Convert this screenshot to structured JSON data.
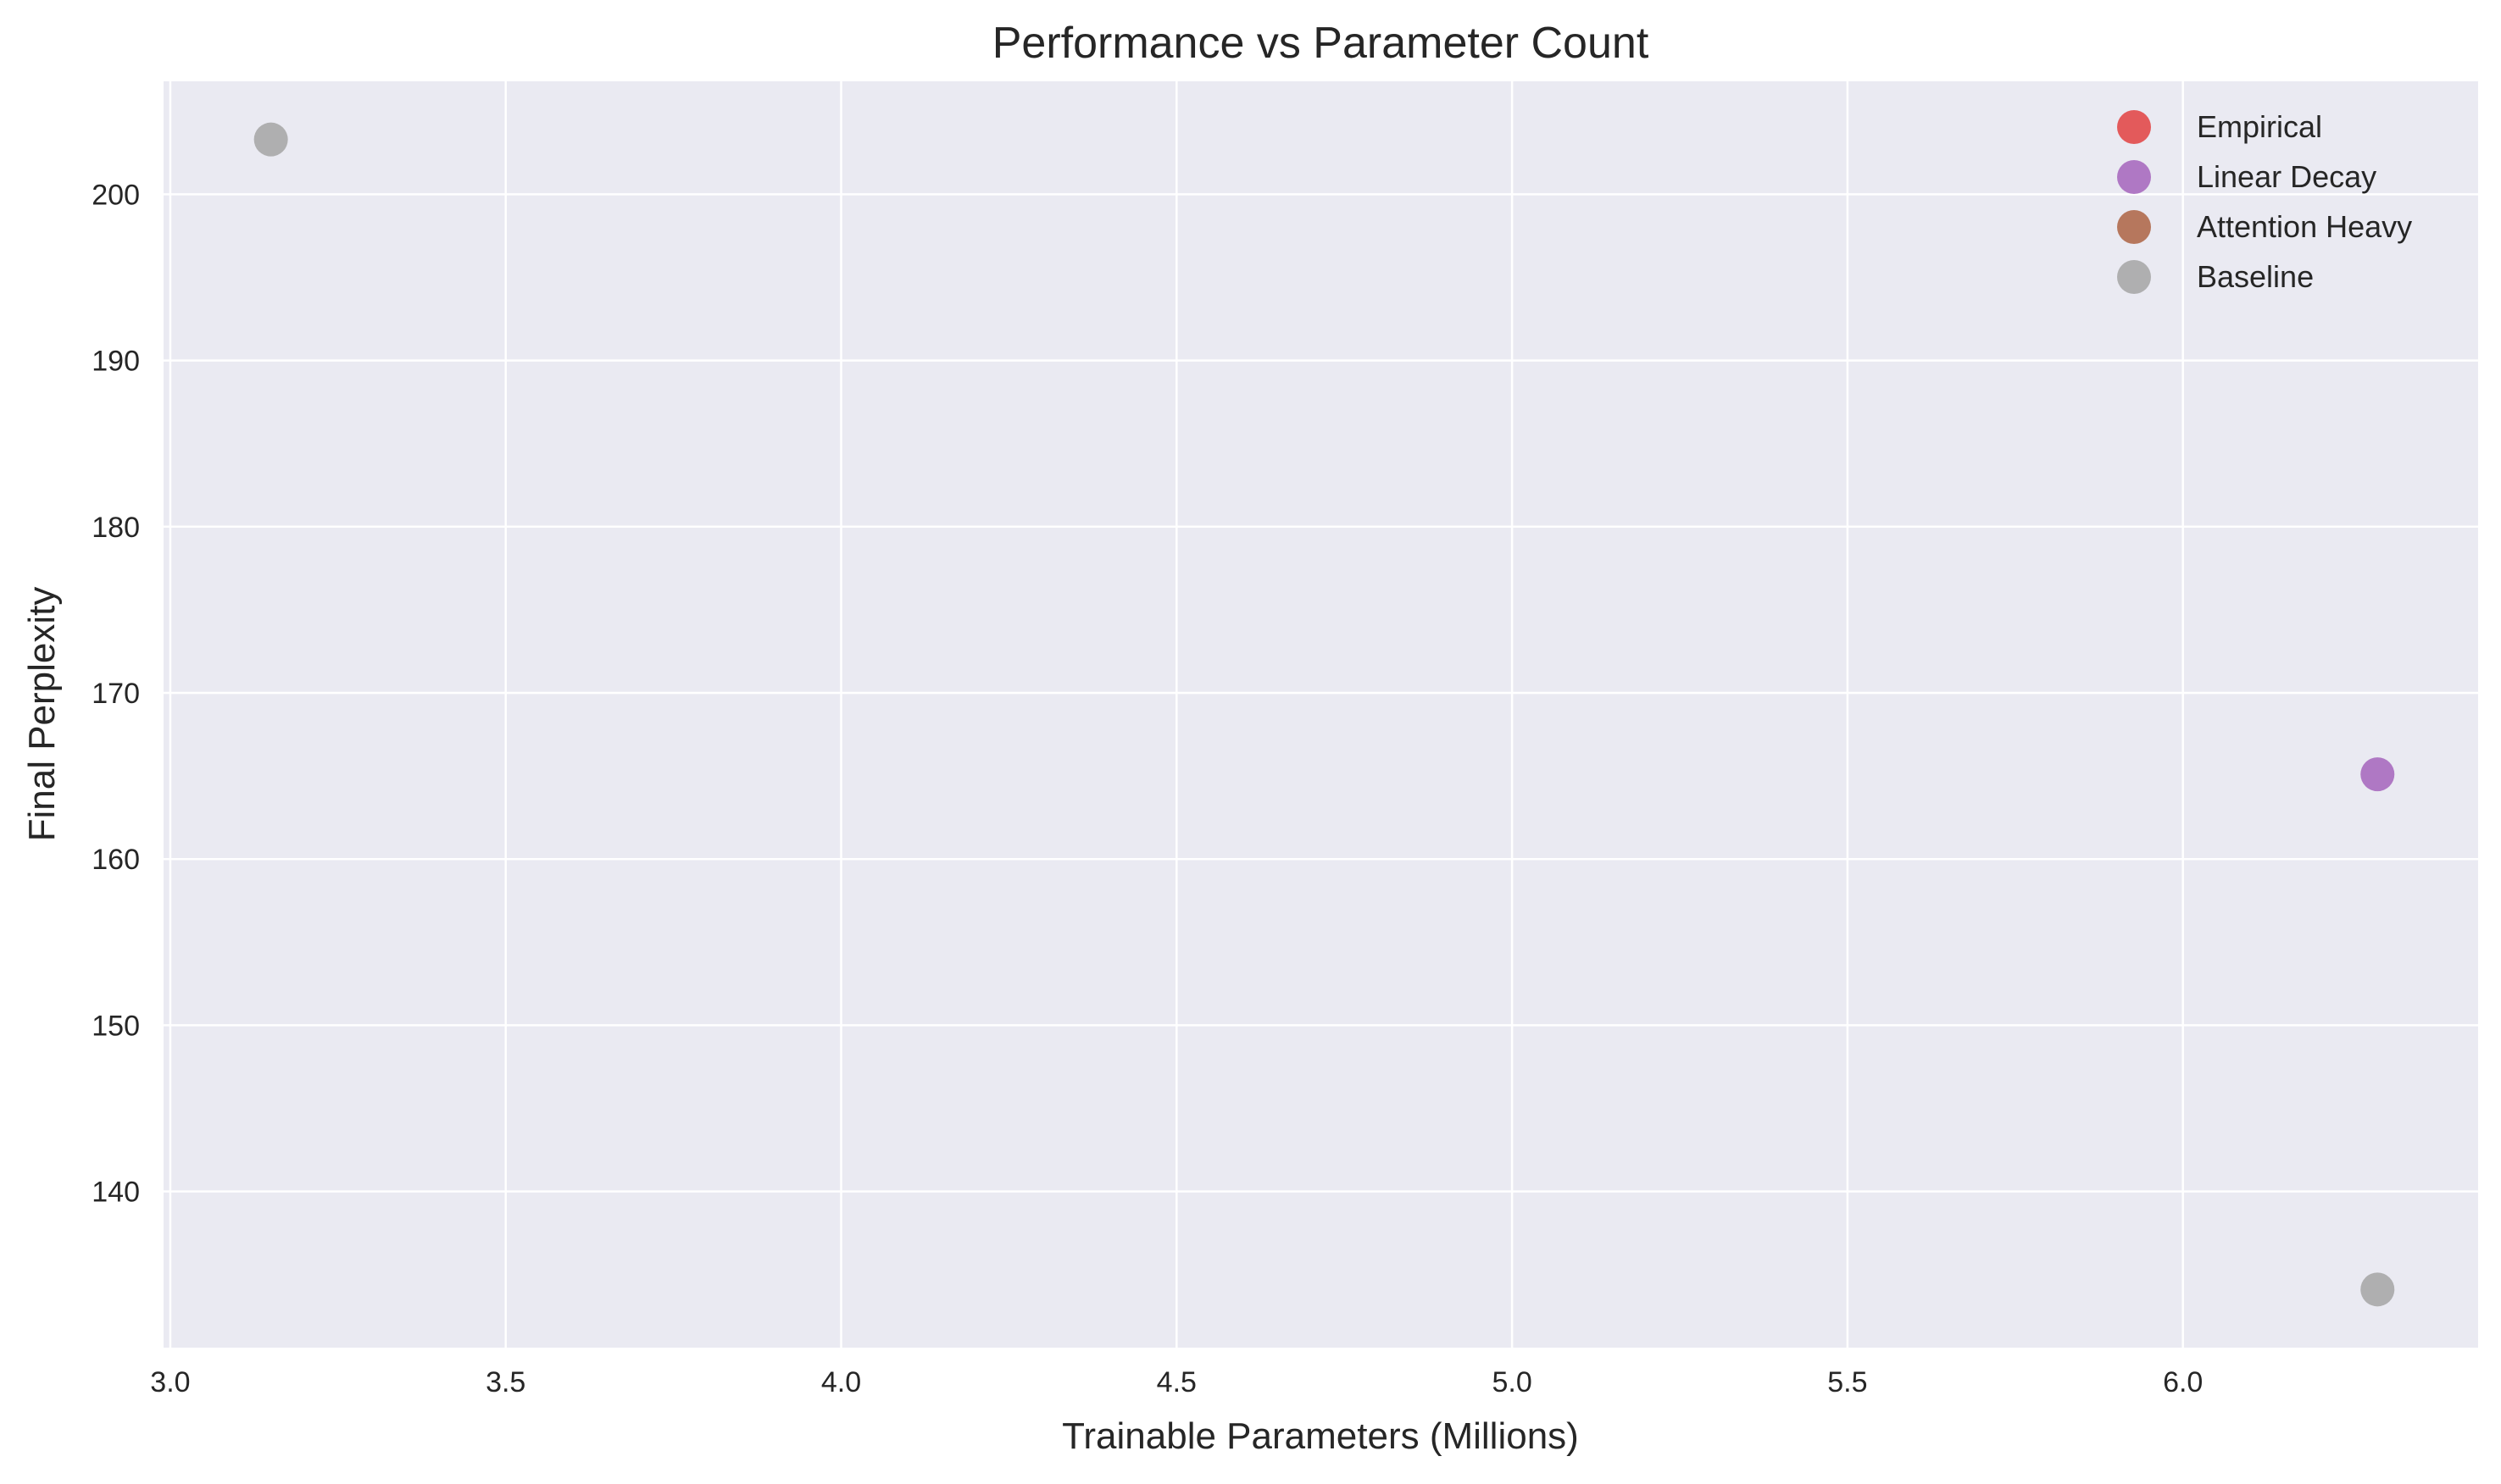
{
  "chart_data": {
    "type": "scatter",
    "title": "Performance vs Parameter Count",
    "xlabel": "Trainable Parameters (Millions)",
    "ylabel": "Final Perplexity",
    "xlim": [
      2.99,
      6.44
    ],
    "ylim": [
      130.6,
      206.8
    ],
    "xticks": [
      "3.0",
      "3.5",
      "4.0",
      "4.5",
      "5.0",
      "5.5",
      "6.0"
    ],
    "yticks": [
      "140",
      "150",
      "160",
      "170",
      "180",
      "190",
      "200"
    ],
    "grid": true,
    "legend_position": "top-right",
    "series": [
      {
        "name": "Empirical",
        "color": "#e24a4a",
        "points": []
      },
      {
        "name": "Linear Decay",
        "color": "#a86cbf",
        "points": [
          {
            "x": 6.29,
            "y": 165.1
          }
        ]
      },
      {
        "name": "Attention Heavy",
        "color": "#b06a4c",
        "points": []
      },
      {
        "name": "Baseline",
        "color": "#a8a8a8",
        "points": [
          {
            "x": 3.15,
            "y": 203.3
          },
          {
            "x": 6.29,
            "y": 134.1
          }
        ]
      }
    ]
  }
}
